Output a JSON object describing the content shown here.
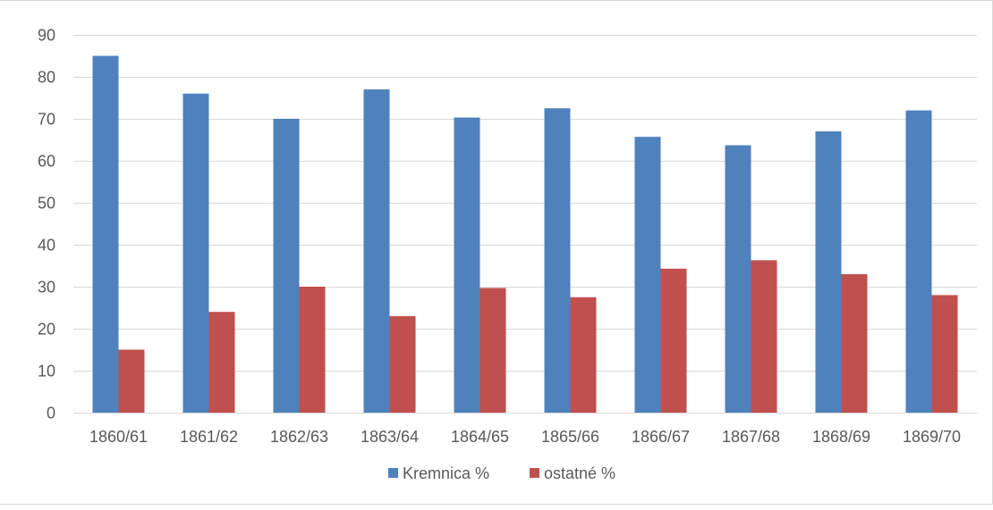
{
  "chart_data": {
    "type": "bar",
    "title": "",
    "xlabel": "",
    "ylabel": "",
    "categories": [
      "1860/61",
      "1861/62",
      "1862/63",
      "1863/64",
      "1864/65",
      "1865/66",
      "1866/67",
      "1867/68",
      "1868/69",
      "1869/70"
    ],
    "series": [
      {
        "name": "Kremnica %",
        "color": "#4f81bd",
        "values": [
          85,
          76,
          70,
          77,
          70.3,
          72.5,
          65.7,
          63.7,
          67,
          72
        ]
      },
      {
        "name": "ostatné %",
        "color": "#c0504d",
        "values": [
          15,
          24,
          30,
          23,
          29.7,
          27.5,
          34.3,
          36.3,
          33,
          28
        ]
      }
    ],
    "ylim": [
      0,
      90
    ],
    "yticks": [
      0,
      10,
      20,
      30,
      40,
      50,
      60,
      70,
      80,
      90
    ],
    "grid": true,
    "legend_position": "bottom"
  },
  "style": {
    "grid_color": "#d9d9d9",
    "text_color": "#595959"
  }
}
